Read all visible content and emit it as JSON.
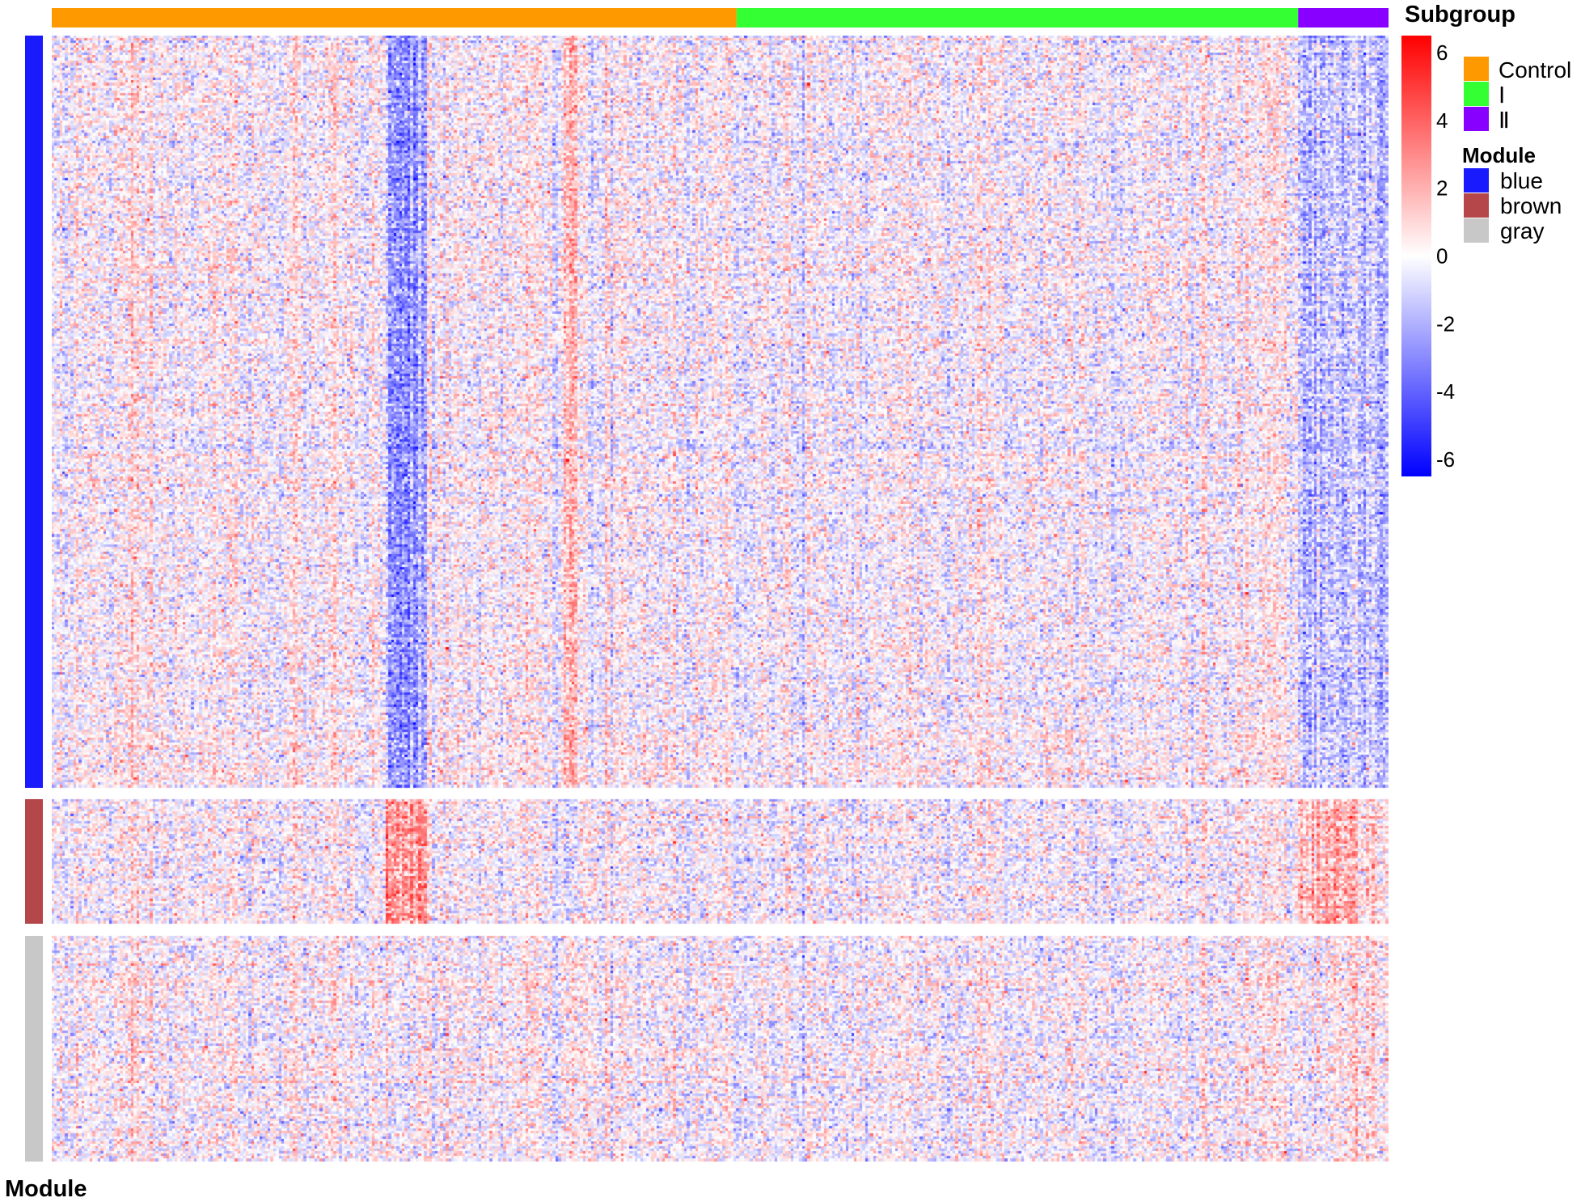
{
  "chart_data": {
    "type": "heatmap",
    "title": "",
    "color_scale": {
      "min": -6.5,
      "max": 6.5,
      "low_color": "#0000ff",
      "mid_color": "#ffffff",
      "high_color": "#ff0000",
      "ticks": [
        6,
        4,
        2,
        0,
        -2,
        -4,
        -6
      ]
    },
    "column_annotation": {
      "name": "Subgroup",
      "groups": [
        {
          "label": "Control",
          "color": "#ff9900",
          "n_columns": 250
        },
        {
          "label": "Ⅰ",
          "color": "#33ff33",
          "n_columns": 205
        },
        {
          "label": "Ⅱ",
          "color": "#8800ff",
          "n_columns": 33
        }
      ]
    },
    "row_annotation": {
      "name": "Module",
      "groups": [
        {
          "label": "blue",
          "color": "#1a1aff",
          "n_rows": 300
        },
        {
          "label": "brown",
          "color": "#b5474b",
          "n_rows": 50
        },
        {
          "label": "gray",
          "color": "#c8c8c8",
          "n_rows": 90
        }
      ]
    },
    "column_effects": {
      "blue": [
        {
          "from": 122,
          "to": 136,
          "mean": -2.6
        },
        {
          "from": 187,
          "to": 191,
          "mean": 1.2
        },
        {
          "from": 196,
          "to": 198,
          "mean": -1.0
        },
        {
          "from": 455,
          "to": 487,
          "mean": -1.6
        }
      ],
      "brown": [
        {
          "from": 122,
          "to": 136,
          "mean": 2.6
        },
        {
          "from": 187,
          "to": 191,
          "mean": -1.3
        },
        {
          "from": 455,
          "to": 475,
          "mean": 1.8
        },
        {
          "from": 476,
          "to": 487,
          "mean": 0.8
        }
      ],
      "gray": [
        {
          "from": 470,
          "to": 487,
          "mean": 0.5
        }
      ]
    },
    "grid": false,
    "legend_position": "right"
  }
}
